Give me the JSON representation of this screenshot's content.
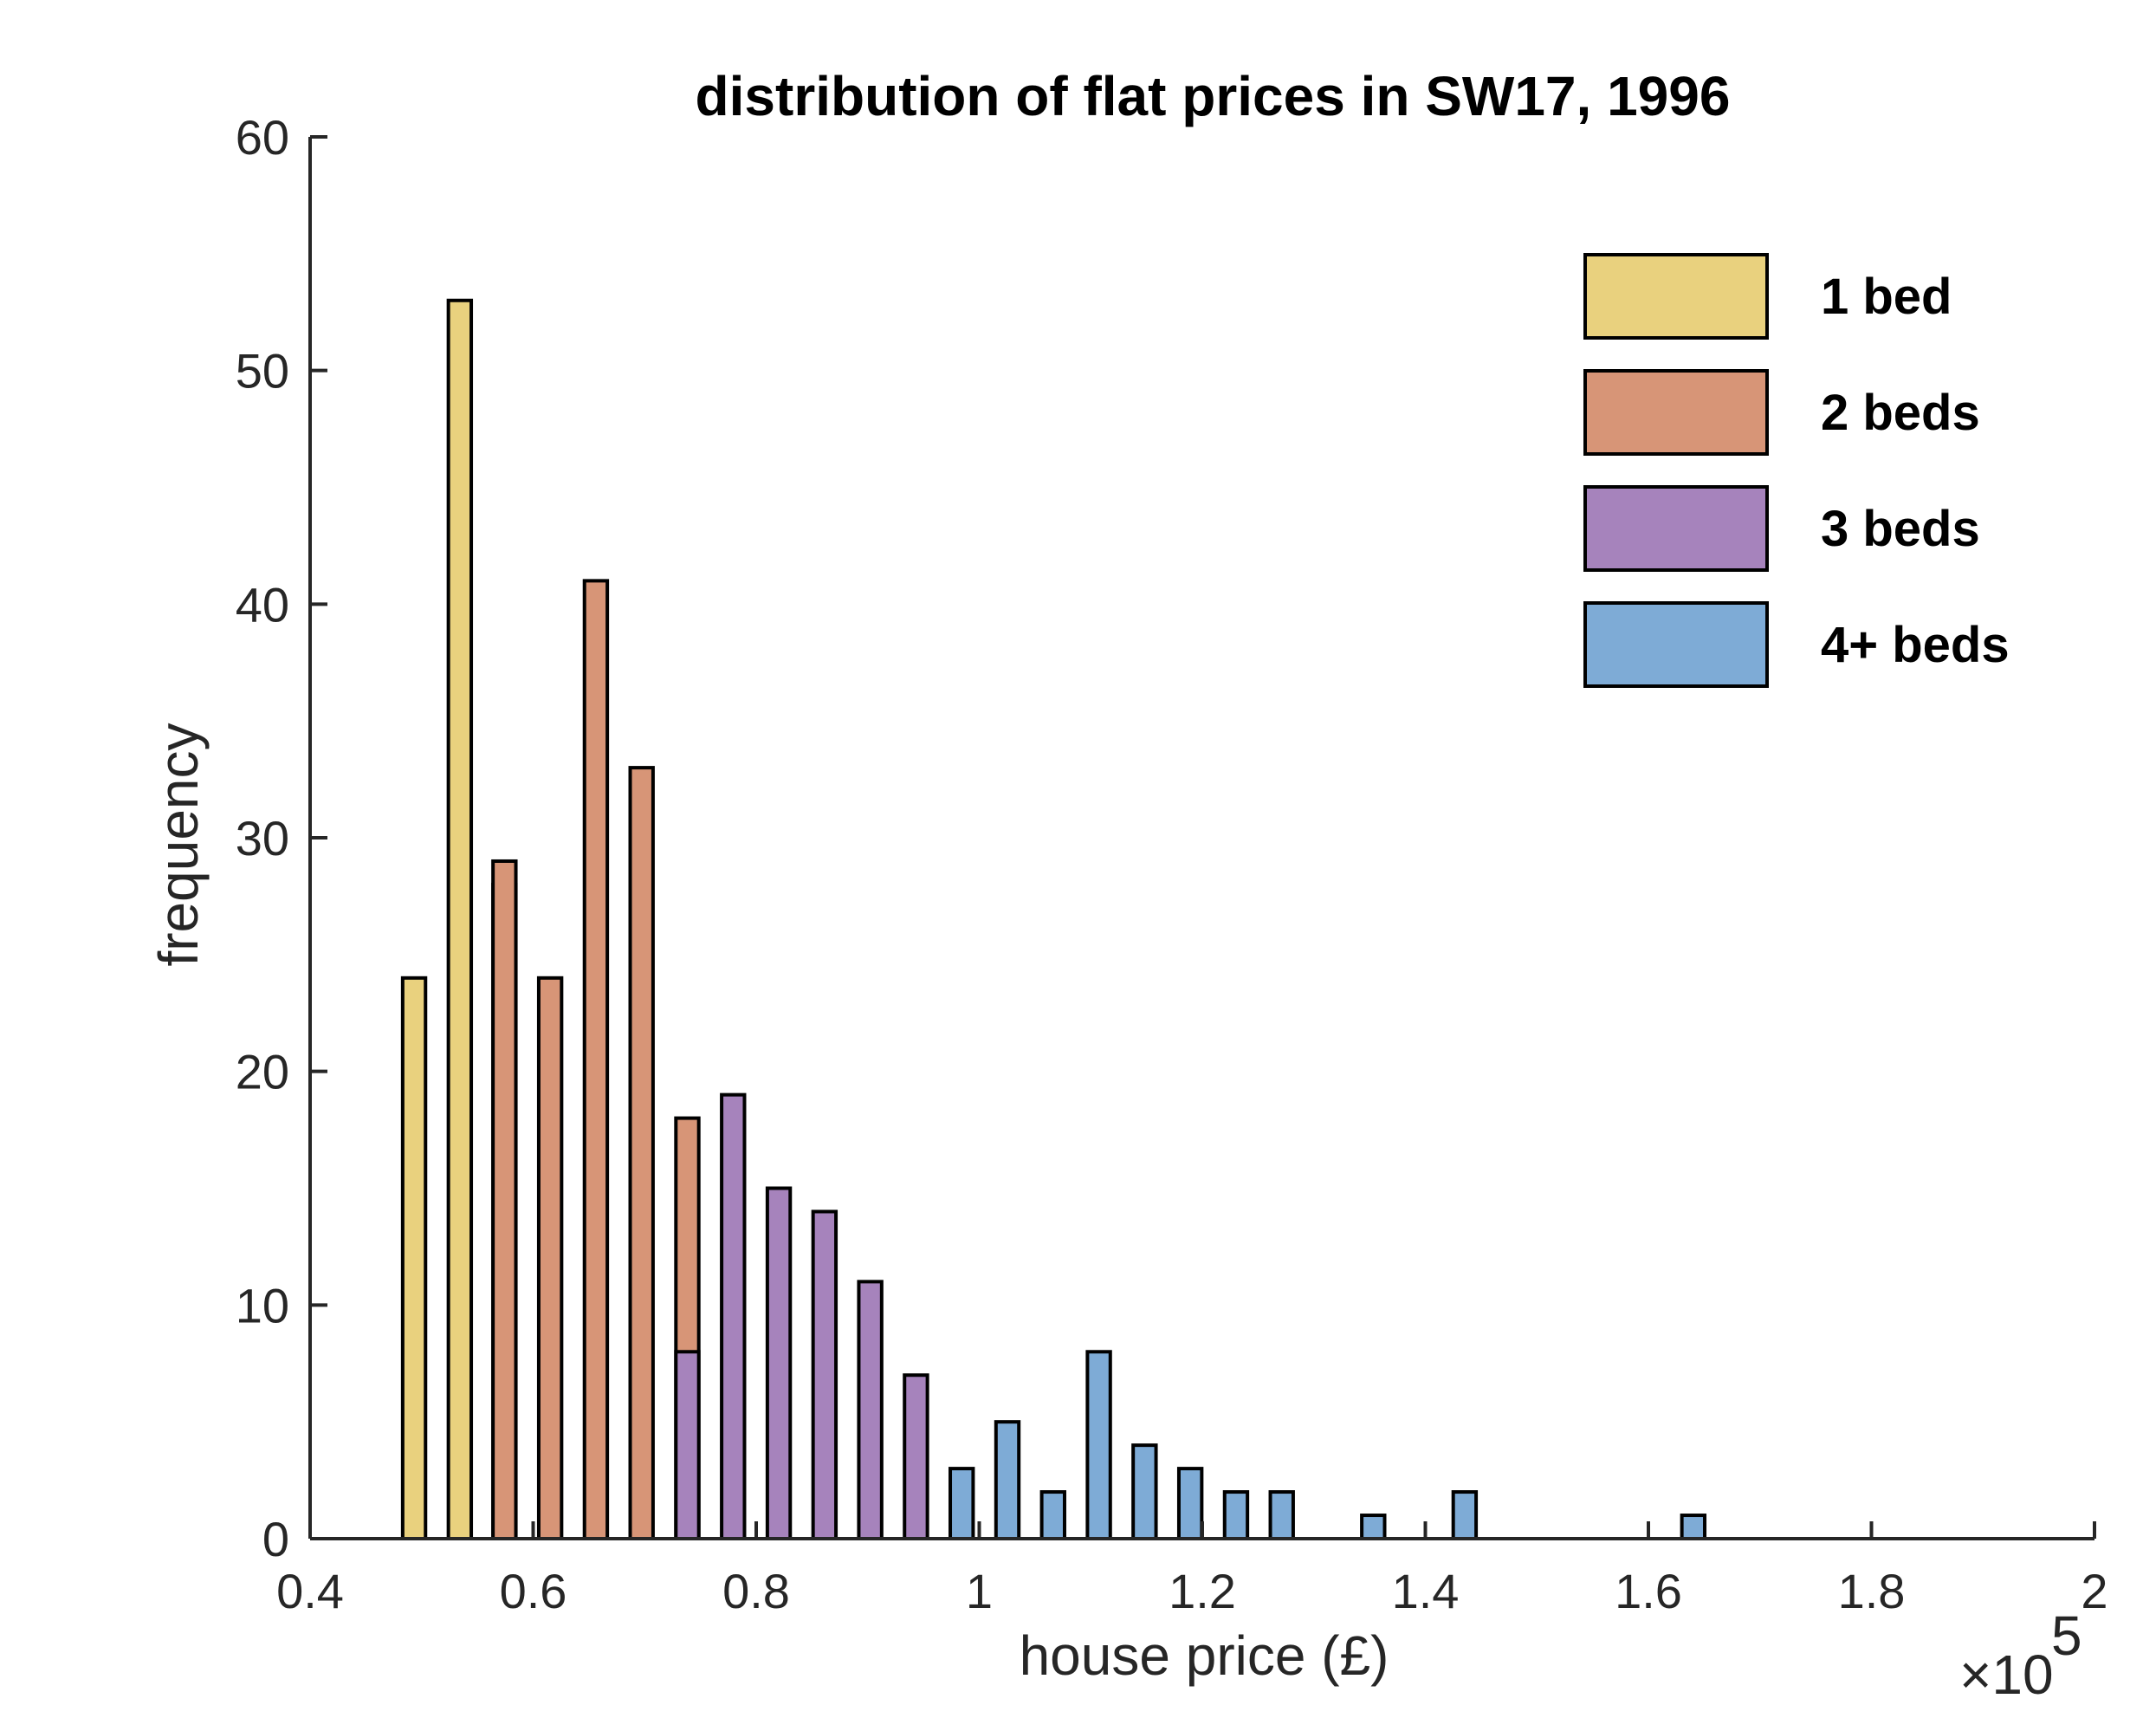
{
  "chart_data": {
    "type": "bar",
    "title": "distribution of flat prices in SW17, 1996",
    "xlabel": "house price (£)",
    "ylabel": "frequency",
    "x_exponent_label": {
      "times": "×10",
      "power": "5"
    },
    "xlim": [
      0.4,
      2.0
    ],
    "ylim": [
      0,
      60
    ],
    "bin_width": 0.0205,
    "xticks": [
      0.4,
      0.6,
      0.8,
      1.0,
      1.2,
      1.4,
      1.6,
      1.8,
      2.0
    ],
    "xtick_labels": [
      "0.4",
      "0.6",
      "0.8",
      "1",
      "1.2",
      "1.4",
      "1.6",
      "1.8",
      "2"
    ],
    "yticks": [
      0,
      10,
      20,
      30,
      40,
      50,
      60
    ],
    "ytick_labels": [
      "0",
      "10",
      "20",
      "30",
      "40",
      "50",
      "60"
    ],
    "legend_position": "top-right",
    "grid": false,
    "series": [
      {
        "name": "1 bed",
        "color": "#e9d17e",
        "bins": [
          {
            "x0": 0.483,
            "value": 24
          },
          {
            "x0": 0.524,
            "value": 53
          },
          {
            "x0": 0.564,
            "value": 28
          }
        ]
      },
      {
        "name": "2 beds",
        "color": "#d79577",
        "bins": [
          {
            "x0": 0.564,
            "value": 29
          },
          {
            "x0": 0.605,
            "value": 24
          },
          {
            "x0": 0.646,
            "value": 41
          },
          {
            "x0": 0.687,
            "value": 33
          },
          {
            "x0": 0.728,
            "value": 18
          }
        ]
      },
      {
        "name": "3 beds",
        "color": "#a683bc",
        "bins": [
          {
            "x0": 0.728,
            "value": 8
          },
          {
            "x0": 0.769,
            "value": 19
          },
          {
            "x0": 0.81,
            "value": 15
          },
          {
            "x0": 0.851,
            "value": 14
          },
          {
            "x0": 0.892,
            "value": 11
          },
          {
            "x0": 0.933,
            "value": 7
          }
        ]
      },
      {
        "name": "4+ beds",
        "color": "#7eabd6",
        "bins": [
          {
            "x0": 0.974,
            "value": 3
          },
          {
            "x0": 1.015,
            "value": 5
          },
          {
            "x0": 1.056,
            "value": 2
          },
          {
            "x0": 1.097,
            "value": 8
          },
          {
            "x0": 1.138,
            "value": 4
          },
          {
            "x0": 1.179,
            "value": 3
          },
          {
            "x0": 1.22,
            "value": 2
          },
          {
            "x0": 1.261,
            "value": 2
          },
          {
            "x0": 1.343,
            "value": 1
          },
          {
            "x0": 1.425,
            "value": 2
          },
          {
            "x0": 1.63,
            "value": 1
          }
        ]
      }
    ]
  }
}
